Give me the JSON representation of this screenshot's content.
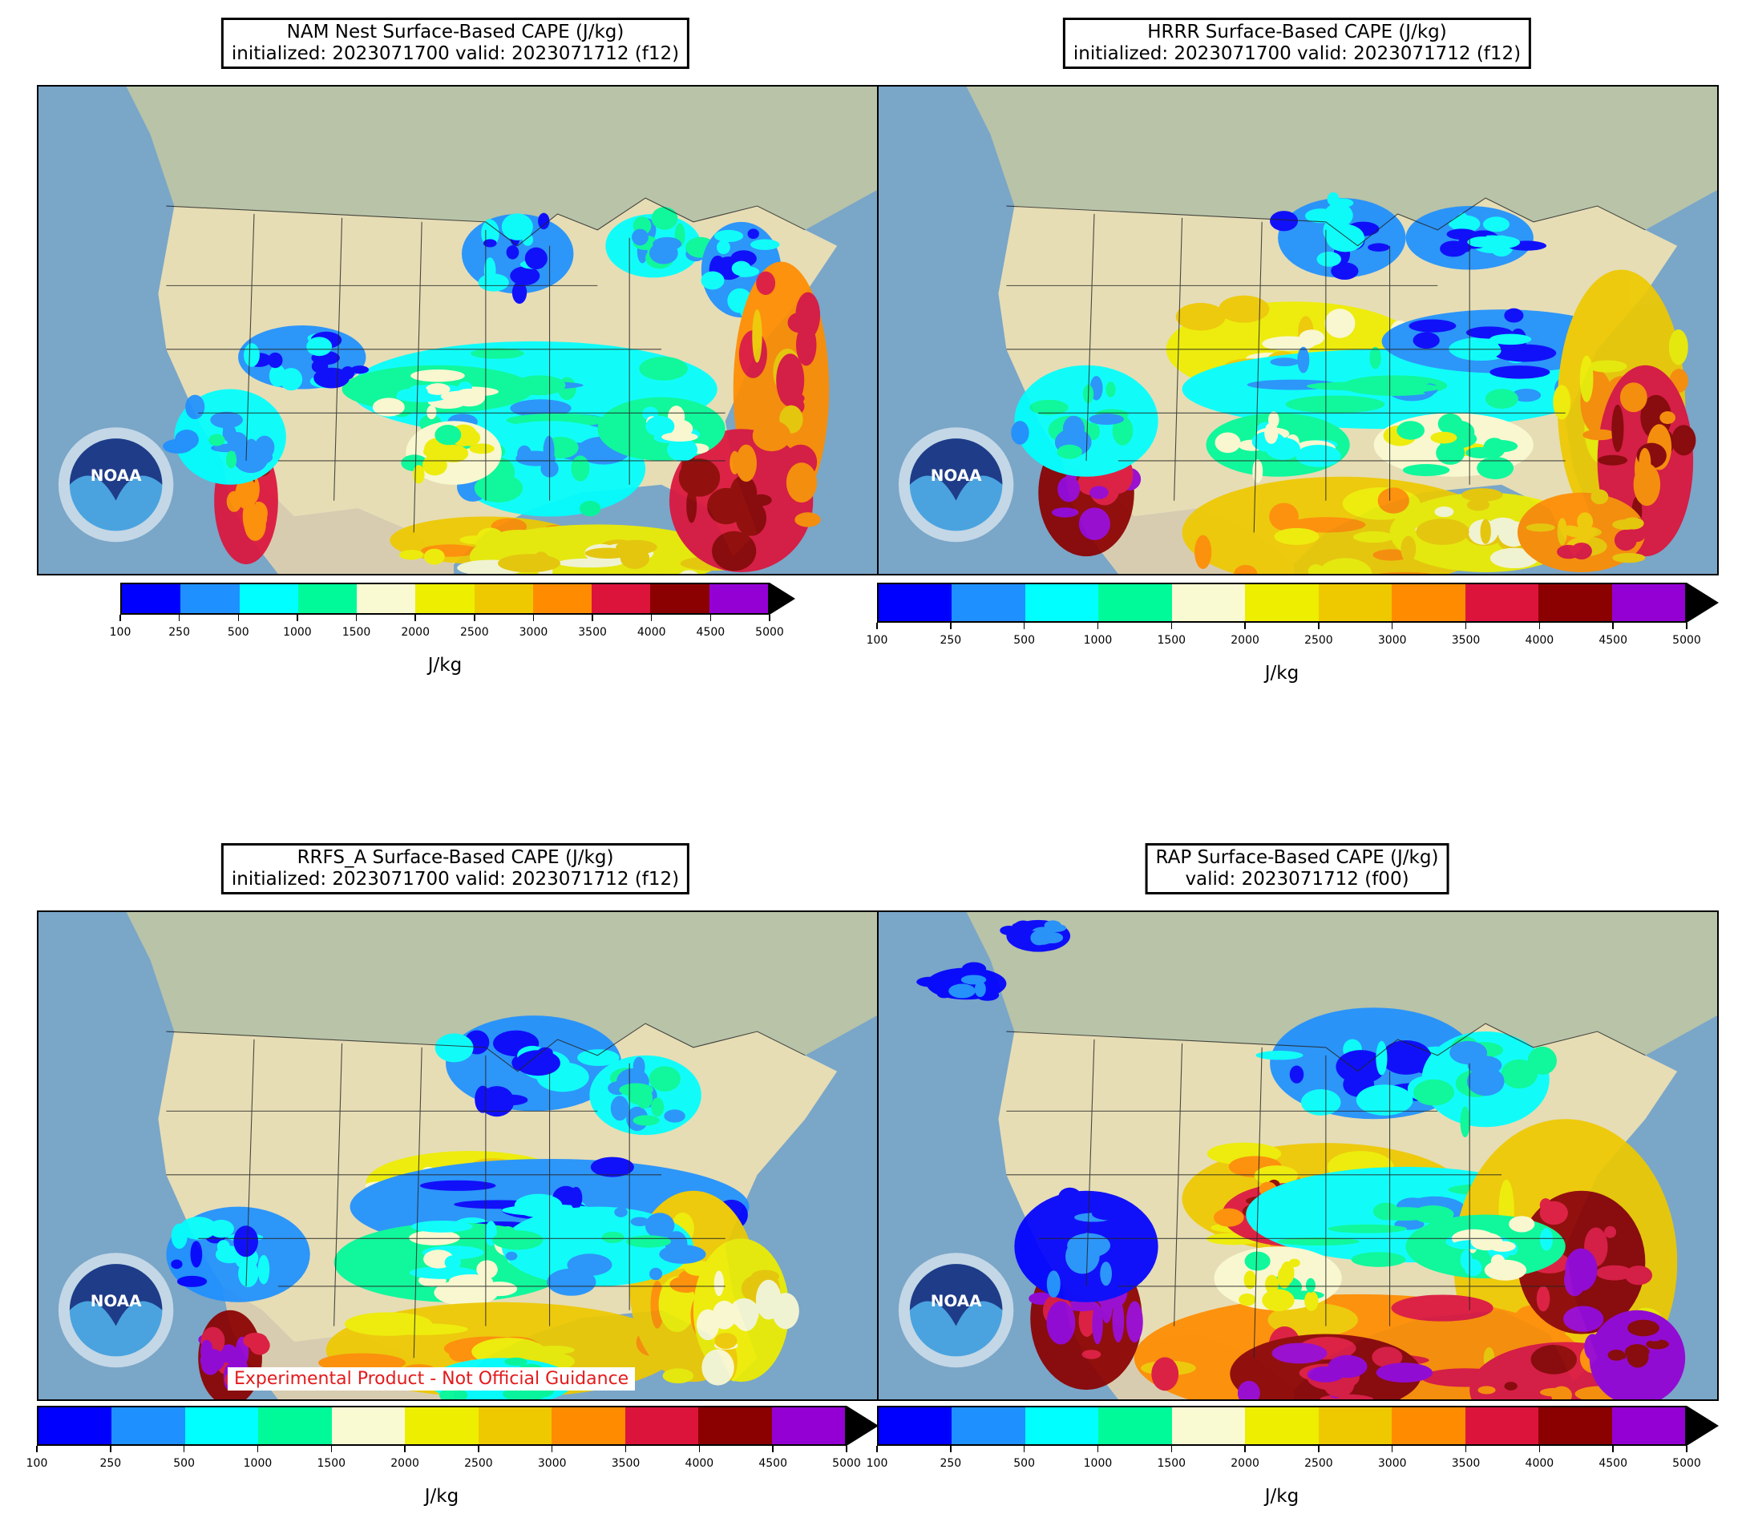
{
  "panels": [
    {
      "id": "nam",
      "title_line1": "NAM Nest Surface-Based CAPE (J/kg)",
      "title_line2": "initialized: 2023071700 valid: 2023071712 (f12)"
    },
    {
      "id": "hrrr",
      "title_line1": "HRRR Surface-Based CAPE (J/kg)",
      "title_line2": "initialized: 2023071700 valid: 2023071712 (f12)"
    },
    {
      "id": "rrfs",
      "title_line1": "RRFS_A Surface-Based CAPE (J/kg)",
      "title_line2": "initialized: 2023071700 valid: 2023071712 (f12)"
    },
    {
      "id": "rap",
      "title_line1": "RAP Surface-Based CAPE (J/kg)",
      "title_line2": "valid: 2023071712 (f00)"
    }
  ],
  "colorbar": {
    "ticks": [
      "100",
      "250",
      "500",
      "1000",
      "1500",
      "2000",
      "2500",
      "3000",
      "3500",
      "4000",
      "4500",
      "5000"
    ],
    "colors": [
      "#0000ff",
      "#1e90ff",
      "#00ffff",
      "#00fa9a",
      "#fafad2",
      "#eeee00",
      "#eec900",
      "#ff8c00",
      "#dc143c",
      "#8b0000",
      "#9400d3"
    ],
    "over_color": "#000000",
    "unit": "J/kg"
  },
  "logo_text": "NOAA",
  "disclaimer": "Experimental Product - Not Official Guidance",
  "colors": {
    "ocean": "#7aa6c8",
    "land": "#e6ddb5",
    "canada": "#b8c3a8",
    "mexico": "#d8ccb0"
  }
}
